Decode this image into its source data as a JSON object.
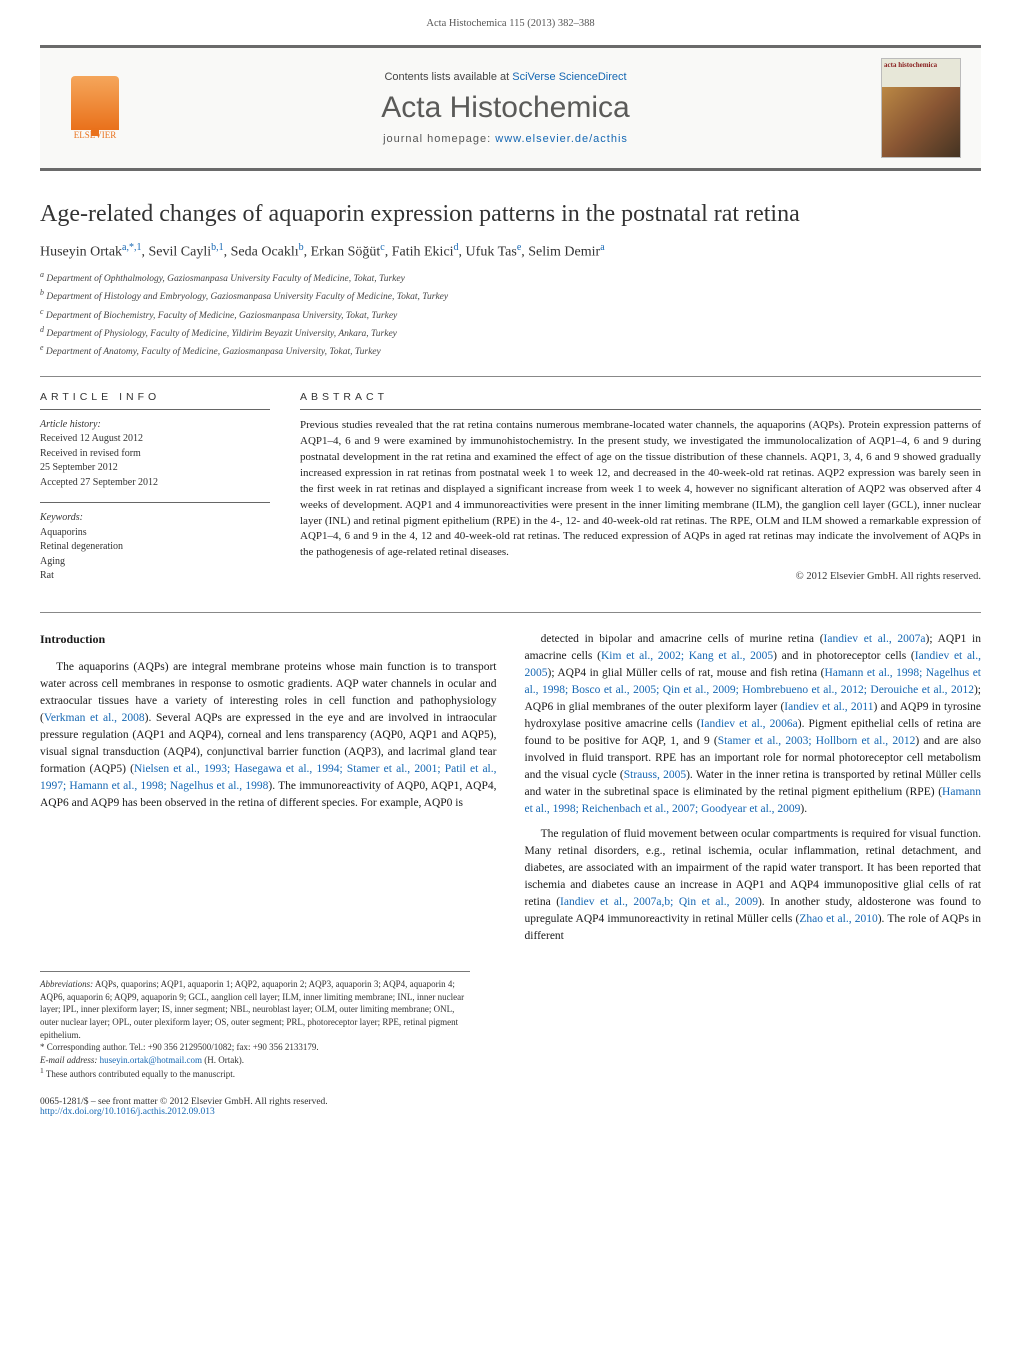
{
  "header": {
    "citation": "Acta Histochemica 115 (2013) 382–388",
    "contents_prefix": "Contents lists available at ",
    "contents_link": "SciVerse ScienceDirect",
    "journal": "Acta Histochemica",
    "homepage_prefix": "journal homepage: ",
    "homepage_url": "www.elsevier.de/acthis",
    "cover_label": "acta histochemica",
    "publisher": "ELSEVIER"
  },
  "title": "Age-related changes of aquaporin expression patterns in the postnatal rat retina",
  "authors_html": "Huseyin Ortak<sup>a,*,1</sup>, Sevil Cayli<sup>b,1</sup>, Seda Ocaklı<sup>b</sup>, Erkan Söğüt<sup>c</sup>, Fatih Ekici<sup>d</sup>, Ufuk Tas<sup>e</sup>, Selim Demir<sup>a</sup>",
  "affiliations": [
    "a Department of Ophthalmology, Gaziosmanpasa University Faculty of Medicine, Tokat, Turkey",
    "b Department of Histology and Embryology, Gaziosmanpasa University Faculty of Medicine, Tokat, Turkey",
    "c Department of Biochemistry, Faculty of Medicine, Gaziosmanpasa University, Tokat, Turkey",
    "d Department of Physiology, Faculty of Medicine, Yildirim Beyazit University, Ankara, Turkey",
    "e Department of Anatomy, Faculty of Medicine, Gaziosmanpasa University, Tokat, Turkey"
  ],
  "info": {
    "label": "ARTICLE INFO",
    "history_label": "Article history:",
    "history": [
      "Received 12 August 2012",
      "Received in revised form",
      "25 September 2012",
      "Accepted 27 September 2012"
    ],
    "keywords_label": "Keywords:",
    "keywords": [
      "Aquaporins",
      "Retinal degeneration",
      "Aging",
      "Rat"
    ]
  },
  "abstract": {
    "label": "ABSTRACT",
    "text": "Previous studies revealed that the rat retina contains numerous membrane-located water channels, the aquaporins (AQPs). Protein expression patterns of AQP1–4, 6 and 9 were examined by immunohistochemistry. In the present study, we investigated the immunolocalization of AQP1–4, 6 and 9 during postnatal development in the rat retina and examined the effect of age on the tissue distribution of these channels. AQP1, 3, 4, 6 and 9 showed gradually increased expression in rat retinas from postnatal week 1 to week 12, and decreased in the 40-week-old rat retinas. AQP2 expression was barely seen in the first week in rat retinas and displayed a significant increase from week 1 to week 4, however no significant alteration of AQP2 was observed after 4 weeks of development. AQP1 and 4 immunoreactivities were present in the inner limiting membrane (ILM), the ganglion cell layer (GCL), inner nuclear layer (INL) and retinal pigment epithelium (RPE) in the 4-, 12- and 40-week-old rat retinas. The RPE, OLM and ILM showed a remarkable expression of AQP1–4, 6 and 9 in the 4, 12 and 40-week-old rat retinas. The reduced expression of AQPs in aged rat retinas may indicate the involvement of AQPs in the pathogenesis of age-related retinal diseases.",
    "copyright": "© 2012 Elsevier GmbH. All rights reserved."
  },
  "body": {
    "intro_heading": "Introduction",
    "left_paras": [
      "The aquaporins (AQPs) are integral membrane proteins whose main function is to transport water across cell membranes in response to osmotic gradients. AQP water channels in ocular and extraocular tissues have a variety of interesting roles in cell function and pathophysiology (<span class=\"cite\">Verkman et al., 2008</span>). Several AQPs are expressed in the eye and are involved in intraocular pressure regulation (AQP1 and AQP4), corneal and lens transparency (AQP0, AQP1 and AQP5), visual signal transduction (AQP4), conjunctival barrier function (AQP3), and lacrimal gland tear formation (AQP5) (<span class=\"cite\">Nielsen et al., 1993; Hasegawa et al., 1994; Stamer et al., 2001; Patil et al., 1997; Hamann et al., 1998; Nagelhus et al., 1998</span>). The immunoreactivity of AQP0, AQP1, AQP4, AQP6 and AQP9 has been observed in the retina of different species. For example, AQP0 is"
    ],
    "right_paras": [
      "detected in bipolar and amacrine cells of murine retina (<span class=\"cite\">Iandiev et al., 2007a</span>); AQP1 in amacrine cells (<span class=\"cite\">Kim et al., 2002; Kang et al., 2005</span>) and in photoreceptor cells (<span class=\"cite\">Iandiev et al., 2005</span>); AQP4 in glial Müller cells of rat, mouse and fish retina (<span class=\"cite\">Hamann et al., 1998; Nagelhus et al., 1998; Bosco et al., 2005; Qin et al., 2009; Hombrebueno et al., 2012; Derouiche et al., 2012</span>); AQP6 in glial membranes of the outer plexiform layer (<span class=\"cite\">Iandiev et al., 2011</span>) and AQP9 in tyrosine hydroxylase positive amacrine cells (<span class=\"cite\">Iandiev et al., 2006a</span>). Pigment epithelial cells of retina are found to be positive for AQP, 1, and 9 (<span class=\"cite\">Stamer et al., 2003; Hollborn et al., 2012</span>) and are also involved in fluid transport. RPE has an important role for normal photoreceptor cell metabolism and the visual cycle (<span class=\"cite\">Strauss, 2005</span>). Water in the inner retina is transported by retinal Müller cells and water in the subretinal space is eliminated by the retinal pigment epithelium (RPE) (<span class=\"cite\">Hamann et al., 1998; Reichenbach et al., 2007; Goodyear et al., 2009</span>).",
      "The regulation of fluid movement between ocular compartments is required for visual function. Many retinal disorders, e.g., retinal ischemia, ocular inflammation, retinal detachment, and diabetes, are associated with an impairment of the rapid water transport. It has been reported that ischemia and diabetes cause an increase in AQP1 and AQP4 immunopositive glial cells of rat retina (<span class=\"cite\">Iandiev et al., 2007a,b; Qin et al., 2009</span>). In another study, aldosterone was found to upregulate AQP4 immunoreactivity in retinal Müller cells (<span class=\"cite\">Zhao et al., 2010</span>). The role of AQPs in different"
    ]
  },
  "footnotes": {
    "abbrev_label": "Abbreviations:",
    "abbrev_text": " AQPs, quaporins; AQP1, aquaporin 1; AQP2, aquaporin 2; AQP3, aquaporin 3; AQP4, aquaporin 4; AQP6, aquaporin 6; AQP9, aquaporin 9; GCL, aanglion cell layer; ILM, inner limiting membrane; INL, inner nuclear layer; IPL, inner plexiform layer; IS, inner segment; NBL, neuroblast layer; OLM, outer limiting membrane; ONL, outer nuclear layer; OPL, outer plexiform layer; OS, outer segment; PRL, photoreceptor layer; RPE, retinal pigment epithelium.",
    "corresponding": "Corresponding author. Tel.: +90 356 2129500/1082; fax: +90 356 2133179.",
    "email_label": "E-mail address: ",
    "email": "huseyin.ortak@hotmail.com",
    "email_suffix": " (H. Ortak).",
    "equal": "These authors contributed equally to the manuscript."
  },
  "bottom": {
    "line1": "0065-1281/$ – see front matter © 2012 Elsevier GmbH. All rights reserved.",
    "doi": "http://dx.doi.org/10.1016/j.acthis.2012.09.013"
  },
  "colors": {
    "link": "#1567b3",
    "text": "#1a1a1a",
    "rule": "#6a6a6a",
    "elsevier": "#e9721e"
  }
}
